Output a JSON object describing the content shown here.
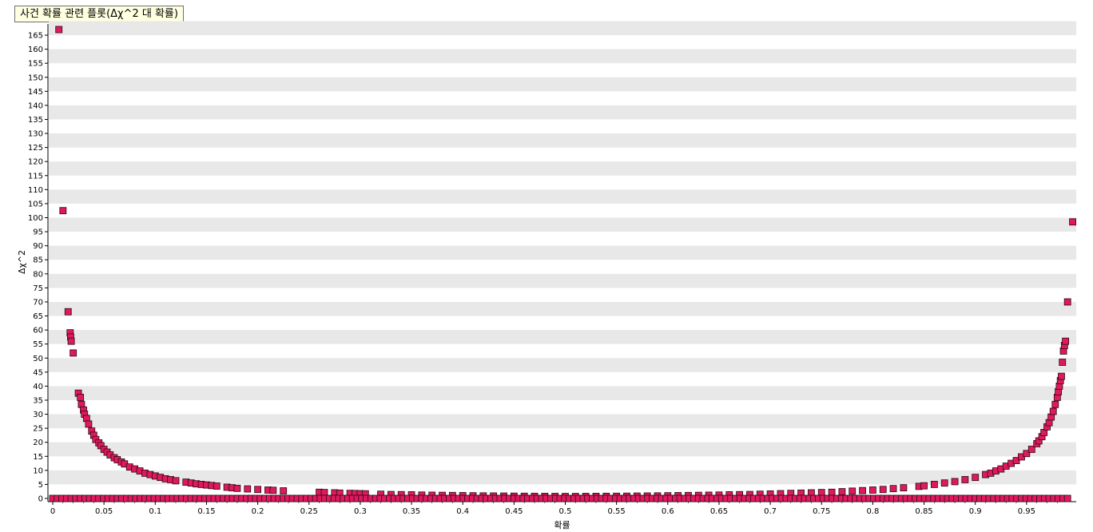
{
  "chart_data": {
    "type": "scatter",
    "title": "사건 확률 관련 플롯(Δχ^2 대 확률)",
    "xlabel": "확률",
    "ylabel": "Δχ^2",
    "xlim": [
      0,
      1
    ],
    "ylim": [
      0,
      168
    ],
    "x_ticks": [
      0,
      0.05,
      0.1,
      0.15,
      0.2,
      0.25,
      0.3,
      0.35,
      0.4,
      0.45,
      0.5,
      0.55,
      0.6,
      0.65,
      0.7,
      0.75,
      0.8,
      0.85,
      0.9,
      0.95
    ],
    "y_ticks": [
      0,
      5,
      10,
      15,
      20,
      25,
      30,
      35,
      40,
      45,
      50,
      55,
      60,
      65,
      70,
      75,
      80,
      85,
      90,
      95,
      100,
      105,
      110,
      115,
      120,
      125,
      130,
      135,
      140,
      145,
      150,
      155,
      160,
      165
    ],
    "grid": "horizontal alternating bands",
    "marker_color": "#e0195f",
    "series": [
      {
        "points": [
          [
            0.006,
            167.0
          ],
          [
            0.01,
            102.5
          ],
          [
            0.015,
            66.5
          ],
          [
            0.017,
            59.0
          ],
          [
            0.0175,
            57.5
          ],
          [
            0.018,
            56.0
          ],
          [
            0.02,
            51.8
          ],
          [
            0.025,
            37.5
          ],
          [
            0.027,
            36.0
          ],
          [
            0.028,
            33.5
          ],
          [
            0.03,
            31.5
          ],
          [
            0.031,
            30.0
          ],
          [
            0.033,
            28.5
          ],
          [
            0.035,
            26.5
          ],
          [
            0.038,
            24.0
          ],
          [
            0.04,
            22.5
          ],
          [
            0.042,
            21.0
          ],
          [
            0.045,
            19.8
          ],
          [
            0.047,
            18.8
          ],
          [
            0.05,
            17.5
          ],
          [
            0.053,
            16.5
          ],
          [
            0.056,
            15.5
          ],
          [
            0.06,
            14.5
          ],
          [
            0.063,
            13.8
          ],
          [
            0.067,
            13.0
          ],
          [
            0.07,
            12.3
          ],
          [
            0.075,
            11.2
          ],
          [
            0.08,
            10.5
          ],
          [
            0.085,
            9.8
          ],
          [
            0.09,
            9.0
          ],
          [
            0.095,
            8.5
          ],
          [
            0.1,
            8.0
          ],
          [
            0.105,
            7.5
          ],
          [
            0.11,
            7.0
          ],
          [
            0.115,
            6.7
          ],
          [
            0.12,
            6.3
          ],
          [
            0.13,
            5.8
          ],
          [
            0.135,
            5.5
          ],
          [
            0.14,
            5.2
          ],
          [
            0.145,
            5.0
          ],
          [
            0.15,
            4.8
          ],
          [
            0.155,
            4.6
          ],
          [
            0.16,
            4.4
          ],
          [
            0.17,
            4.0
          ],
          [
            0.175,
            3.8
          ],
          [
            0.18,
            3.6
          ],
          [
            0.19,
            3.4
          ],
          [
            0.2,
            3.2
          ],
          [
            0.21,
            3.0
          ],
          [
            0.215,
            2.9
          ],
          [
            0.225,
            2.7
          ],
          [
            0.26,
            2.2
          ],
          [
            0.265,
            2.1
          ],
          [
            0.275,
            2.0
          ],
          [
            0.28,
            1.9
          ],
          [
            0.29,
            1.8
          ],
          [
            0.295,
            1.75
          ],
          [
            0.3,
            1.7
          ],
          [
            0.305,
            1.65
          ],
          [
            0.32,
            1.5
          ],
          [
            0.33,
            1.4
          ],
          [
            0.34,
            1.35
          ],
          [
            0.35,
            1.3
          ],
          [
            0.36,
            1.2
          ],
          [
            0.37,
            1.15
          ],
          [
            0.38,
            1.1
          ],
          [
            0.39,
            1.05
          ],
          [
            0.4,
            1.0
          ],
          [
            0.41,
            0.95
          ],
          [
            0.42,
            0.9
          ],
          [
            0.43,
            0.87
          ],
          [
            0.44,
            0.84
          ],
          [
            0.45,
            0.8
          ],
          [
            0.46,
            0.78
          ],
          [
            0.47,
            0.76
          ],
          [
            0.48,
            0.74
          ],
          [
            0.49,
            0.72
          ],
          [
            0.5,
            0.7
          ],
          [
            0.51,
            0.7
          ],
          [
            0.52,
            0.72
          ],
          [
            0.53,
            0.74
          ],
          [
            0.54,
            0.76
          ],
          [
            0.55,
            0.78
          ],
          [
            0.56,
            0.8
          ],
          [
            0.57,
            0.84
          ],
          [
            0.58,
            0.87
          ],
          [
            0.59,
            0.9
          ],
          [
            0.6,
            0.95
          ],
          [
            0.61,
            1.0
          ],
          [
            0.62,
            1.05
          ],
          [
            0.63,
            1.1
          ],
          [
            0.64,
            1.15
          ],
          [
            0.65,
            1.2
          ],
          [
            0.66,
            1.3
          ],
          [
            0.67,
            1.35
          ],
          [
            0.68,
            1.4
          ],
          [
            0.69,
            1.5
          ],
          [
            0.7,
            1.6
          ],
          [
            0.71,
            1.7
          ],
          [
            0.72,
            1.8
          ],
          [
            0.73,
            1.9
          ],
          [
            0.74,
            2.0
          ],
          [
            0.75,
            2.1
          ],
          [
            0.76,
            2.2
          ],
          [
            0.77,
            2.4
          ],
          [
            0.78,
            2.6
          ],
          [
            0.79,
            2.8
          ],
          [
            0.8,
            3.0
          ],
          [
            0.81,
            3.2
          ],
          [
            0.82,
            3.5
          ],
          [
            0.83,
            3.8
          ],
          [
            0.845,
            4.3
          ],
          [
            0.85,
            4.5
          ],
          [
            0.86,
            5.0
          ],
          [
            0.87,
            5.5
          ],
          [
            0.88,
            6.0
          ],
          [
            0.89,
            6.7
          ],
          [
            0.9,
            7.5
          ],
          [
            0.91,
            8.5
          ],
          [
            0.915,
            9.0
          ],
          [
            0.92,
            9.8
          ],
          [
            0.925,
            10.5
          ],
          [
            0.93,
            11.5
          ],
          [
            0.935,
            12.5
          ],
          [
            0.94,
            13.5
          ],
          [
            0.945,
            14.8
          ],
          [
            0.95,
            16.0
          ],
          [
            0.955,
            17.5
          ],
          [
            0.96,
            19.5
          ],
          [
            0.962,
            20.5
          ],
          [
            0.965,
            22.0
          ],
          [
            0.967,
            23.5
          ],
          [
            0.97,
            25.5
          ],
          [
            0.972,
            27.0
          ],
          [
            0.974,
            29.0
          ],
          [
            0.976,
            31.0
          ],
          [
            0.978,
            33.5
          ],
          [
            0.98,
            36.0
          ],
          [
            0.981,
            38.0
          ],
          [
            0.982,
            40.0
          ],
          [
            0.983,
            42.0
          ],
          [
            0.984,
            43.5
          ],
          [
            0.985,
            48.5
          ],
          [
            0.986,
            52.5
          ],
          [
            0.987,
            54.5
          ],
          [
            0.988,
            56.0
          ],
          [
            0.99,
            70.0
          ],
          [
            0.995,
            98.5
          ]
        ]
      }
    ]
  }
}
